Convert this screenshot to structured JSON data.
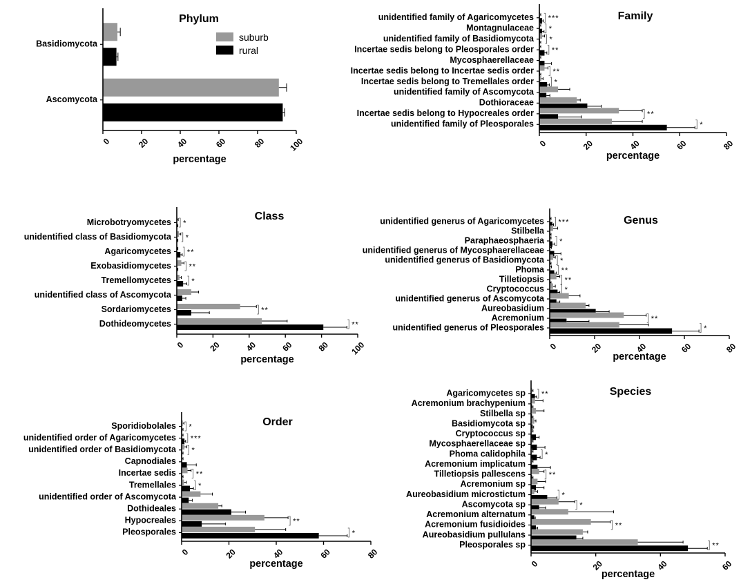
{
  "colors": {
    "suburb": "#999999",
    "rural": "#000000"
  },
  "legend": {
    "suburb": "suburb",
    "rural": "rural"
  },
  "chart_data": [
    {
      "type": "bar",
      "orientation": "horizontal",
      "title": "Phylum",
      "xlabel": "percentage",
      "xlim": [
        0,
        100
      ],
      "ticks": [
        0,
        20,
        40,
        60,
        80,
        100
      ],
      "legend": "top-right",
      "categories": [
        "Basidiomycota",
        "Ascomycota"
      ],
      "series": [
        {
          "name": "suburb",
          "values": [
            7.5,
            91
          ],
          "errors": [
            1.5,
            4
          ]
        },
        {
          "name": "rural",
          "values": [
            7,
            93
          ],
          "errors": [
            0.8,
            1
          ]
        }
      ],
      "significance": [
        "",
        ""
      ]
    },
    {
      "type": "bar",
      "orientation": "horizontal",
      "title": "Family",
      "xlabel": "percentage",
      "xlim": [
        0,
        80
      ],
      "ticks": [
        0,
        20,
        40,
        60,
        80
      ],
      "categories": [
        "unidentified family of Agaricomycetes",
        "Montagnulaceae",
        "unidentified family of Basidiomycota",
        "Incertae sedis belong to Pleosporales order",
        "Mycosphaerellaceae",
        "Incertae sedis belong to Incertae sedis order",
        "Incertae sedis belong to Tremellales order",
        "unidentified family of Ascomycota",
        "Dothioraceae",
        "Incertae sedis belong to Hypocreales order",
        "unidentified family of Pleosporales"
      ],
      "series": [
        {
          "name": "suburb",
          "values": [
            0.3,
            0.3,
            1.2,
            0.3,
            0.3,
            2.2,
            0.8,
            8,
            16,
            34,
            31
          ],
          "errors": [
            0.3,
            0.3,
            1,
            0.3,
            0.3,
            1.5,
            0.8,
            5,
            1.5,
            10,
            13
          ]
        },
        {
          "name": "rural",
          "values": [
            1.2,
            1.2,
            0.3,
            2.2,
            2.2,
            0.3,
            3.3,
            3,
            20.5,
            8,
            54.5
          ],
          "errors": [
            0.5,
            0.8,
            0.3,
            1,
            3,
            0.3,
            1,
            1.5,
            6,
            10,
            12
          ]
        }
      ],
      "significance": [
        "***",
        "*",
        "*",
        "**",
        "",
        "**",
        "*",
        "",
        "",
        "**",
        "*"
      ]
    },
    {
      "type": "bar",
      "orientation": "horizontal",
      "title": "Class",
      "xlabel": "percentage",
      "xlim": [
        0,
        100
      ],
      "ticks": [
        0,
        20,
        40,
        60,
        80,
        100
      ],
      "categories": [
        "Microbotryomycetes",
        "unidentified class of Basidiomycota",
        "Agaricomycetes",
        "Exobasidiomycetes",
        "Tremellomycetes",
        "unidentified class of Ascomycota",
        "Sordariomycetes",
        "Dothideomycetes"
      ],
      "series": [
        {
          "name": "suburb",
          "values": [
            0.3,
            1.2,
            0.3,
            2.5,
            1.5,
            8,
            35,
            47
          ],
          "errors": [
            0.5,
            1,
            0.3,
            1.5,
            1,
            4,
            9,
            14
          ]
        },
        {
          "name": "rural",
          "values": [
            0.3,
            0.3,
            2,
            0.3,
            3.5,
            3,
            8,
            81
          ],
          "errors": [
            0.3,
            0.3,
            1,
            0.3,
            2,
            2,
            10,
            13
          ]
        }
      ],
      "significance": [
        "*",
        "*",
        "**",
        "**",
        "*",
        "",
        "**",
        "**"
      ]
    },
    {
      "type": "bar",
      "orientation": "horizontal",
      "title": "Genus",
      "xlabel": "percentage",
      "xlim": [
        0,
        80
      ],
      "ticks": [
        0,
        20,
        40,
        60,
        80
      ],
      "categories": [
        "unidentified generus of Agaricomycetes",
        "Stilbella",
        "Paraphaeosphaeria",
        "unidentified generus of Mycosphaerellaceae",
        "unidentified generus of Basidiomycota",
        "Phoma",
        "Tilletiopsis",
        "Cryptococcus",
        "unidentified generus of Ascomycota",
        "Aureobasidium",
        "Acremonium",
        "unidentified generus of Pleosporales"
      ],
      "series": [
        {
          "name": "suburb",
          "values": [
            0.3,
            1.5,
            0.3,
            0.3,
            1.5,
            0.3,
            3,
            1.5,
            8.5,
            16,
            33,
            31
          ],
          "errors": [
            0.3,
            2,
            0.3,
            0.5,
            1,
            0.5,
            1.5,
            1,
            5,
            1.5,
            10,
            13
          ]
        },
        {
          "name": "rural",
          "values": [
            1.2,
            0.3,
            1.2,
            2,
            0.3,
            2,
            0.3,
            3.5,
            3,
            20.5,
            7.5,
            54.5
          ],
          "errors": [
            0.5,
            0.3,
            1,
            3,
            0.3,
            1,
            0.3,
            1,
            1.5,
            6,
            10,
            12
          ]
        }
      ],
      "significance": [
        "***",
        "",
        "*",
        "",
        "*",
        "**",
        "**",
        "*",
        "",
        "",
        "**",
        "*"
      ]
    },
    {
      "type": "bar",
      "orientation": "horizontal",
      "title": "Order",
      "xlabel": "percentage",
      "xlim": [
        0,
        80
      ],
      "ticks": [
        0,
        20,
        40,
        60,
        80
      ],
      "categories": [
        "Sporidiobolales",
        "unidentified order of Agaricomycetes",
        "unidentified order of Basidiomycota",
        "Capnodiales",
        "Incertae sedis",
        "Tremellales",
        "unidentified order of Ascomycota",
        "Dothideales",
        "Hypocreales",
        "Pleosporales"
      ],
      "series": [
        {
          "name": "suburb",
          "values": [
            0.5,
            0.3,
            1.2,
            0.3,
            2.5,
            1,
            8,
            15.5,
            35,
            31
          ],
          "errors": [
            0.5,
            0.3,
            1,
            0.3,
            1.5,
            1,
            5,
            1.5,
            10,
            13
          ]
        },
        {
          "name": "rural",
          "values": [
            0.3,
            1.2,
            0.3,
            2.2,
            0.3,
            3.5,
            3,
            21,
            8.5,
            58
          ],
          "errors": [
            0.3,
            0.5,
            0.3,
            4,
            0.3,
            1.5,
            1.5,
            6,
            10,
            12
          ]
        }
      ],
      "significance": [
        "*",
        "***",
        "*",
        "",
        "**",
        "*",
        "",
        "",
        "**",
        "*"
      ]
    },
    {
      "type": "bar",
      "orientation": "horizontal",
      "title": "Species",
      "xlabel": "percentage",
      "xlim": [
        0,
        60
      ],
      "ticks": [
        0,
        20,
        40,
        60
      ],
      "categories": [
        "Agaricomycetes sp",
        "Acremonium brachypenium",
        "Stilbella sp",
        "Basidiomycota sp",
        "Cryptococcus sp",
        "Mycosphaerellaceae sp",
        "Phoma calidophila",
        "Acremonium implicatum",
        "Tilletiopsis pallescens",
        "Acremonium sp",
        "Aureobasidium microstictum",
        "Ascomycota sp",
        "Acremonium alternatum",
        "Acremonium fusidioides",
        "Aureobasidium pullulans",
        "Pleosporales sp"
      ],
      "series": [
        {
          "name": "suburb",
          "values": [
            0.3,
            1.2,
            1.5,
            1,
            0.3,
            0.3,
            0.3,
            0.3,
            2.5,
            2,
            1,
            8.5,
            11.5,
            18.5,
            16,
            33
          ],
          "errors": [
            0.3,
            2.5,
            2.5,
            0.5,
            0.3,
            0.3,
            0.3,
            0.3,
            1.5,
            2.5,
            1,
            5,
            14,
            6,
            1.5,
            14
          ]
        },
        {
          "name": "rural",
          "values": [
            1.2,
            0.3,
            0.3,
            0.5,
            1.5,
            1.8,
            1.8,
            2,
            0.3,
            1.5,
            5,
            2.5,
            1,
            1.5,
            14,
            48.5
          ],
          "errors": [
            0.5,
            0.3,
            0.3,
            0.3,
            1,
            2.5,
            1,
            4,
            0.3,
            2.5,
            3,
            2,
            0.3,
            0.5,
            2,
            6
          ]
        }
      ],
      "significance": [
        "**",
        "",
        "",
        "",
        "",
        "",
        "*",
        "",
        "**",
        "",
        "*",
        "*",
        "",
        "**",
        "",
        "**"
      ]
    }
  ]
}
